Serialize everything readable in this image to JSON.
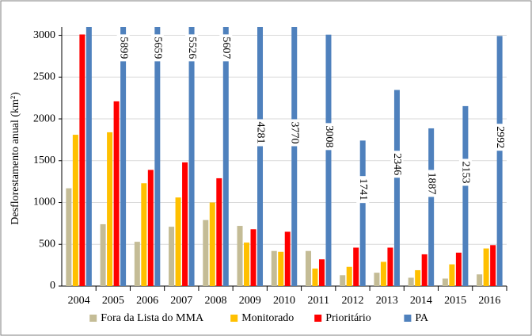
{
  "chart_data": {
    "type": "bar",
    "y_label": "Desflorestamento anual (km²)",
    "categories": [
      "2004",
      "2005",
      "2006",
      "2007",
      "2008",
      "2009",
      "2010",
      "2011",
      "2012",
      "2013",
      "2014",
      "2015",
      "2016"
    ],
    "series": [
      {
        "name": "Fora da Lista do MMA",
        "color": "#c4bc96",
        "values": [
          1170,
          740,
          530,
          710,
          790,
          720,
          420,
          420,
          130,
          160,
          100,
          90,
          140
        ]
      },
      {
        "name": "Monitorado",
        "color": "#ffc000",
        "values": [
          1810,
          1840,
          1230,
          1060,
          1000,
          520,
          410,
          210,
          230,
          290,
          190,
          260,
          450
        ]
      },
      {
        "name": "Prioritário",
        "color": "#ff0000",
        "values": [
          3010,
          2210,
          1390,
          1480,
          1290,
          680,
          650,
          320,
          460,
          460,
          380,
          400,
          490
        ]
      },
      {
        "name": "PA",
        "color": "#4f81bd",
        "values": [
          3100,
          5899,
          5659,
          5526,
          5607,
          4281,
          3770,
          3008,
          1741,
          2346,
          1887,
          2153,
          2992
        ],
        "value_labels": [
          null,
          "5899",
          "5659",
          "5526",
          "5607",
          "4281",
          "3770",
          "3008",
          "1741",
          "2346",
          "1887",
          "2153",
          "2992"
        ]
      }
    ],
    "ylim": [
      0,
      3100
    ],
    "yticks": [
      0,
      500,
      1000,
      1500,
      2000,
      2500,
      3000
    ],
    "grid": true,
    "legend": "bottom"
  }
}
